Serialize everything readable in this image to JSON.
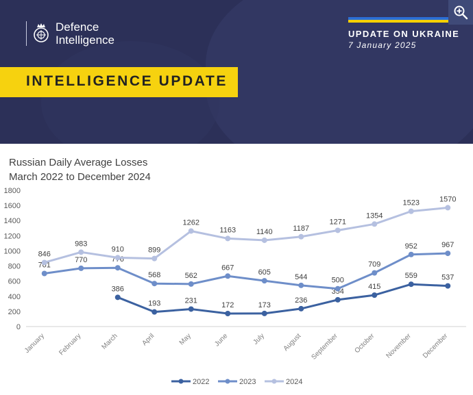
{
  "header": {
    "org_line1": "Defence",
    "org_line2": "Intelligence",
    "update_title": "UPDATE ON UKRAINE",
    "update_date": "7 January 2025",
    "banner": "INTELLIGENCE UPDATE"
  },
  "colors": {
    "header_bg": "#2c3058",
    "banner_yellow": "#f6d20f",
    "series_2022": "#3b61a0",
    "series_2023": "#6e8ec9",
    "series_2024": "#b5c0e0"
  },
  "icons": [
    "crest-icon",
    "zoom-in-icon"
  ],
  "chart_data": {
    "type": "line",
    "title": "Russian Daily Average Losses",
    "subtitle": "March 2022 to December 2024",
    "categories": [
      "January",
      "February",
      "March",
      "April",
      "May",
      "June",
      "July",
      "August",
      "September",
      "October",
      "November",
      "December"
    ],
    "ylim": [
      0,
      1800
    ],
    "yticks": [
      0,
      200,
      400,
      600,
      800,
      1000,
      1200,
      1400,
      1600,
      1800
    ],
    "grid": false,
    "legend": "bottom-center",
    "series": [
      {
        "name": "2022",
        "color": "#3b61a0",
        "values": [
          null,
          null,
          386,
          193,
          231,
          172,
          173,
          236,
          354,
          415,
          559,
          537
        ]
      },
      {
        "name": "2023",
        "color": "#6e8ec9",
        "values": [
          701,
          770,
          776,
          568,
          562,
          667,
          605,
          544,
          500,
          709,
          952,
          967
        ]
      },
      {
        "name": "2024",
        "color": "#b5c0e0",
        "values": [
          846,
          983,
          910,
          899,
          1262,
          1163,
          1140,
          1187,
          1271,
          1354,
          1523,
          1570
        ]
      }
    ]
  }
}
